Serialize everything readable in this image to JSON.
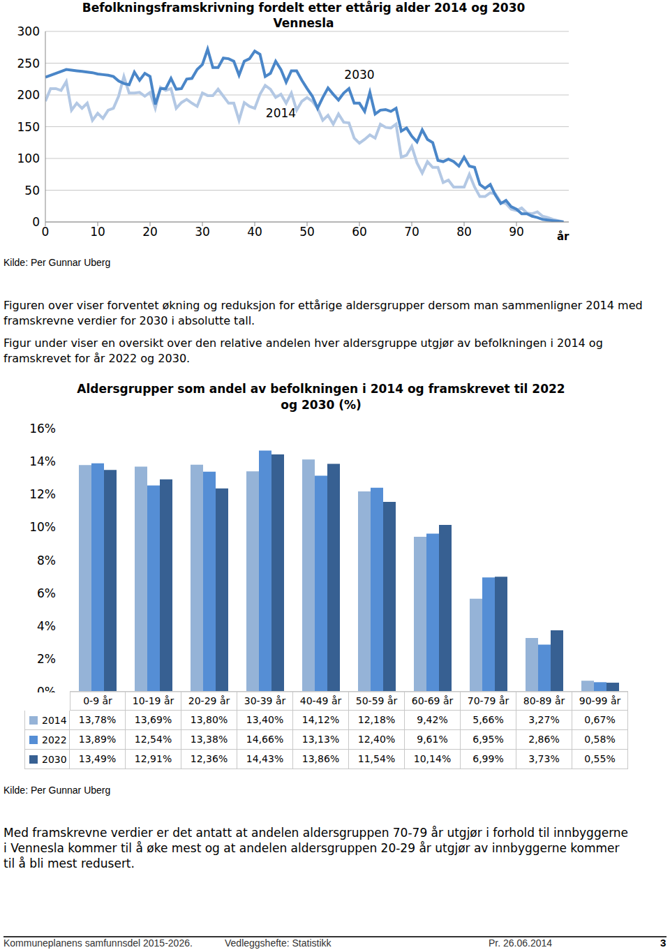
{
  "chart_data": [
    {
      "type": "line",
      "title": "Befolkningsframskrivning fordelt etter ettårig alder 2014 og 2030 Vennesla",
      "xlabel": "år",
      "x": [
        0,
        1,
        2,
        3,
        4,
        5,
        6,
        7,
        8,
        9,
        10,
        11,
        12,
        13,
        14,
        15,
        16,
        17,
        18,
        19,
        20,
        21,
        22,
        23,
        24,
        25,
        26,
        27,
        28,
        29,
        30,
        31,
        32,
        33,
        34,
        35,
        36,
        37,
        38,
        39,
        40,
        41,
        42,
        43,
        44,
        45,
        46,
        47,
        48,
        49,
        50,
        51,
        52,
        53,
        54,
        55,
        56,
        57,
        58,
        59,
        60,
        61,
        62,
        63,
        64,
        65,
        66,
        67,
        68,
        69,
        70,
        71,
        72,
        73,
        74,
        75,
        76,
        77,
        78,
        79,
        80,
        81,
        82,
        83,
        84,
        85,
        86,
        87,
        88,
        89,
        90,
        91,
        92,
        93,
        94,
        95,
        96,
        97,
        98,
        99
      ],
      "xlim": [
        0,
        100
      ],
      "xticks": [
        0,
        10,
        20,
        30,
        40,
        50,
        60,
        70,
        80,
        90
      ],
      "ylim": [
        0,
        300
      ],
      "yticks": [
        0,
        50,
        100,
        150,
        200,
        250,
        300
      ],
      "grid": true,
      "series": [
        {
          "name": "2014",
          "color": "#b3c8e4",
          "values": [
            190,
            210,
            210,
            207,
            221,
            176,
            187,
            179,
            187,
            160,
            171,
            163,
            176,
            179,
            198,
            229,
            203,
            203,
            204,
            198,
            204,
            179,
            212,
            207,
            210,
            179,
            188,
            193,
            187,
            182,
            203,
            199,
            199,
            209,
            198,
            187,
            187,
            160,
            188,
            182,
            179,
            201,
            215,
            209,
            196,
            201,
            187,
            203,
            176,
            190,
            196,
            190,
            179,
            160,
            168,
            154,
            170,
            157,
            156,
            132,
            124,
            130,
            137,
            132,
            154,
            149,
            148,
            154,
            102,
            105,
            119,
            93,
            77,
            95,
            86,
            86,
            62,
            66,
            55,
            55,
            55,
            75,
            55,
            40,
            40,
            46,
            44,
            31,
            29,
            20,
            18,
            22,
            14,
            13,
            16,
            9,
            7,
            4,
            2,
            0
          ]
        },
        {
          "name": "2030",
          "color": "#4a86c8",
          "values": [
            228,
            231,
            234,
            237,
            240,
            239,
            238,
            237,
            236,
            235,
            233,
            232,
            231,
            229,
            222,
            218,
            216,
            236,
            223,
            234,
            229,
            185,
            210,
            210,
            226,
            209,
            210,
            225,
            226,
            240,
            248,
            272,
            243,
            243,
            258,
            257,
            253,
            231,
            253,
            257,
            269,
            264,
            229,
            234,
            253,
            240,
            220,
            238,
            238,
            223,
            210,
            198,
            179,
            196,
            211,
            201,
            192,
            203,
            210,
            187,
            187,
            174,
            204,
            170,
            176,
            177,
            174,
            179,
            143,
            148,
            135,
            126,
            145,
            130,
            125,
            97,
            95,
            99,
            95,
            88,
            102,
            88,
            86,
            59,
            53,
            59,
            42,
            29,
            34,
            24,
            20,
            13,
            13,
            9,
            7,
            4,
            3,
            2,
            1,
            0
          ]
        }
      ],
      "annotations": [
        {
          "text": "2030",
          "x": 60,
          "y": 232
        },
        {
          "text": "2014",
          "x": 45,
          "y": 171
        }
      ]
    },
    {
      "type": "bar",
      "title": "Aldersgrupper som andel av befolkningen i 2014 og framskrevet til 2022 og 2030 (%)",
      "categories": [
        "0-9 år",
        "10-19 år",
        "20-29 år",
        "30-39 år",
        "40-49 år",
        "50-59 år",
        "60-69 år",
        "70-79 år",
        "80-89 år",
        "90-99 år"
      ],
      "ylim": [
        0,
        16
      ],
      "yticks": [
        {
          "value": 0,
          "label": "0%"
        },
        {
          "value": 2,
          "label": "2%"
        },
        {
          "value": 4,
          "label": "4%"
        },
        {
          "value": 6,
          "label": "6%"
        },
        {
          "value": 8,
          "label": "8%"
        },
        {
          "value": 10,
          "label": "10%"
        },
        {
          "value": 12,
          "label": "12%"
        },
        {
          "value": 14,
          "label": "14%"
        },
        {
          "value": 16,
          "label": "16%"
        }
      ],
      "grid": false,
      "series": [
        {
          "name": "2014",
          "color": "#95b3d7",
          "values": [
            13.78,
            13.69,
            13.8,
            13.4,
            14.12,
            12.18,
            9.42,
            5.66,
            3.27,
            0.67
          ],
          "value_labels": [
            "13,78%",
            "13,69%",
            "13,80%",
            "13,40%",
            "14,12%",
            "12,18%",
            "9,42%",
            "5,66%",
            "3,27%",
            "0,67%"
          ]
        },
        {
          "name": "2022",
          "color": "#558ed5",
          "values": [
            13.89,
            12.54,
            13.38,
            14.66,
            13.13,
            12.4,
            9.61,
            6.95,
            2.86,
            0.58
          ],
          "value_labels": [
            "13,89%",
            "12,54%",
            "13,38%",
            "14,66%",
            "13,13%",
            "12,40%",
            "9,61%",
            "6,95%",
            "2,86%",
            "0,58%"
          ]
        },
        {
          "name": "2030",
          "color": "#376092",
          "values": [
            13.49,
            12.91,
            12.36,
            14.43,
            13.86,
            11.54,
            10.14,
            6.99,
            3.73,
            0.55
          ],
          "value_labels": [
            "13,49%",
            "12,91%",
            "12,36%",
            "14,43%",
            "13,86%",
            "11,54%",
            "10,14%",
            "6,99%",
            "3,73%",
            "0,55%"
          ]
        }
      ]
    }
  ],
  "text": {
    "source_line_chart": "Kilde: Per Gunnar Uberg",
    "paragraph_1": "Figuren over viser forventet økning og reduksjon for ettårige aldersgrupper dersom man sammenligner 2014 med framskrevne verdier for 2030 i absolutte tall.",
    "paragraph_2": "Figur under viser en oversikt over den relative andelen hver aldersgruppe utgjør av befolkningen i 2014 og framskrevet for år 2022 og 2030.",
    "source_bar_chart": "Kilde: Per Gunnar Uberg",
    "paragraph_3": "Med framskrevne verdier er det antatt at andelen aldersgruppen 70-79 år utgjør i forhold til innbyggerne i Vennesla kommer til å øke mest og at andelen aldersgruppen 20-29 år utgjør av innbyggerne kommer til å bli mest redusert.",
    "footer": {
      "left": "Kommuneplanens samfunnsdel 2015-2026.",
      "middle": "Vedleggshefte: Statistikk",
      "right": "Pr. 26.06.2014",
      "page": "3"
    }
  }
}
